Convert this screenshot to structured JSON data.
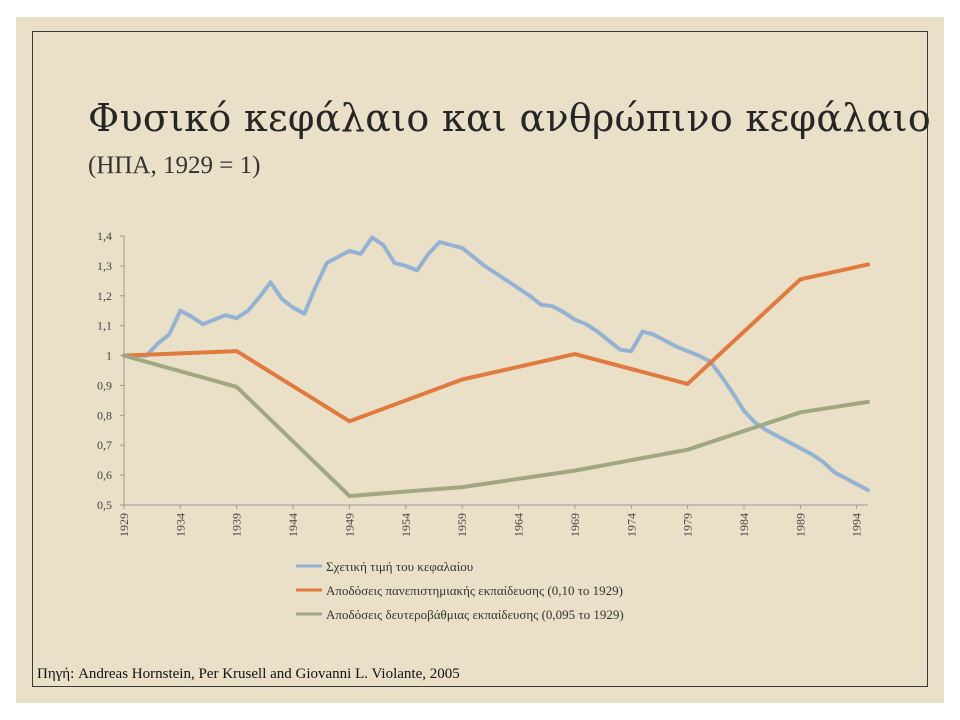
{
  "slide": {
    "title": "Φυσικό κεφάλαιο και ανθρώπινο κεφάλαιο",
    "subtitle": "(ΗΠΑ,  1929 = 1)",
    "source": "Πηγή:  Andreas Hornstein, Per Krusell and Giovanni L. Violante, 2005"
  },
  "chart_data": {
    "type": "line",
    "xlim": [
      1929,
      1995
    ],
    "ylim": [
      0.5,
      1.4
    ],
    "x_tick_labels": [
      "1929",
      "1934",
      "1939",
      "1944",
      "1949",
      "1954",
      "1959",
      "1964",
      "1969",
      "1974",
      "1979",
      "1984",
      "1989",
      "1994"
    ],
    "y_tick_labels": [
      "0,5",
      "0,6",
      "0,7",
      "0,8",
      "0,9",
      "1",
      "1,1",
      "1,2",
      "1,3",
      "1,4"
    ],
    "legend_position": "bottom",
    "grid": false,
    "series": [
      {
        "name": "Σχετική τιμή του κεφαλαίου",
        "color": "#94b3d4",
        "points": [
          [
            1929,
            1.0
          ],
          [
            1931,
            1.0
          ],
          [
            1932,
            1.04
          ],
          [
            1933,
            1.07
          ],
          [
            1934,
            1.15
          ],
          [
            1935,
            1.13
          ],
          [
            1936,
            1.105
          ],
          [
            1937,
            1.12
          ],
          [
            1938,
            1.135
          ],
          [
            1939,
            1.125
          ],
          [
            1940,
            1.15
          ],
          [
            1941,
            1.195
          ],
          [
            1942,
            1.245
          ],
          [
            1943,
            1.19
          ],
          [
            1944,
            1.16
          ],
          [
            1945,
            1.14
          ],
          [
            1946,
            1.23
          ],
          [
            1947,
            1.31
          ],
          [
            1948,
            1.33
          ],
          [
            1949,
            1.35
          ],
          [
            1950,
            1.34
          ],
          [
            1951,
            1.395
          ],
          [
            1952,
            1.37
          ],
          [
            1953,
            1.31
          ],
          [
            1954,
            1.3
          ],
          [
            1955,
            1.285
          ],
          [
            1956,
            1.34
          ],
          [
            1957,
            1.38
          ],
          [
            1958,
            1.37
          ],
          [
            1959,
            1.36
          ],
          [
            1960,
            1.33
          ],
          [
            1961,
            1.3
          ],
          [
            1962,
            1.275
          ],
          [
            1963,
            1.25
          ],
          [
            1964,
            1.225
          ],
          [
            1965,
            1.2
          ],
          [
            1966,
            1.17
          ],
          [
            1967,
            1.165
          ],
          [
            1968,
            1.145
          ],
          [
            1969,
            1.12
          ],
          [
            1970,
            1.105
          ],
          [
            1971,
            1.08
          ],
          [
            1972,
            1.05
          ],
          [
            1973,
            1.02
          ],
          [
            1974,
            1.015
          ],
          [
            1975,
            1.08
          ],
          [
            1976,
            1.07
          ],
          [
            1977,
            1.05
          ],
          [
            1978,
            1.03
          ],
          [
            1979,
            1.015
          ],
          [
            1980,
            1.0
          ],
          [
            1981,
            0.98
          ],
          [
            1982,
            0.93
          ],
          [
            1983,
            0.875
          ],
          [
            1984,
            0.815
          ],
          [
            1985,
            0.775
          ],
          [
            1986,
            0.75
          ],
          [
            1987,
            0.73
          ],
          [
            1988,
            0.71
          ],
          [
            1989,
            0.69
          ],
          [
            1990,
            0.67
          ],
          [
            1991,
            0.645
          ],
          [
            1992,
            0.61
          ],
          [
            1993,
            0.59
          ],
          [
            1994,
            0.57
          ],
          [
            1995,
            0.55
          ]
        ]
      },
      {
        "name": "Αποδόσεις πανεπιστημιακής εκπαίδευσης (0,10 το 1929)",
        "color": "#e07a3f",
        "points": [
          [
            1929,
            1.0
          ],
          [
            1939,
            1.015
          ],
          [
            1949,
            0.78
          ],
          [
            1959,
            0.92
          ],
          [
            1969,
            1.005
          ],
          [
            1979,
            0.905
          ],
          [
            1989,
            1.255
          ],
          [
            1995,
            1.305
          ]
        ]
      },
      {
        "name": "Αποδόσεις δευτεροβάθμιας εκπαίδευσης (0,095 το 1929)",
        "color": "#a0a883",
        "points": [
          [
            1929,
            1.0
          ],
          [
            1939,
            0.895
          ],
          [
            1949,
            0.53
          ],
          [
            1959,
            0.56
          ],
          [
            1969,
            0.615
          ],
          [
            1979,
            0.685
          ],
          [
            1989,
            0.81
          ],
          [
            1995,
            0.845
          ]
        ]
      }
    ]
  }
}
